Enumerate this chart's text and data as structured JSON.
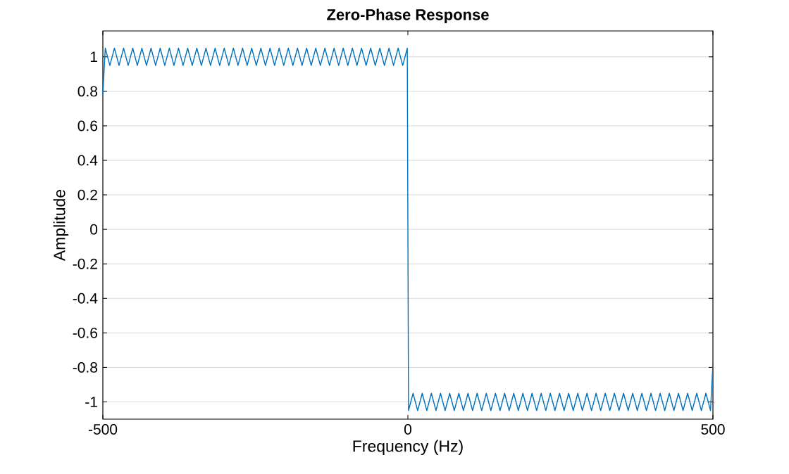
{
  "chart_data": {
    "type": "line",
    "title": "Zero-Phase Response",
    "xlabel": "Frequency (Hz)",
    "ylabel": "Amplitude",
    "color": "#0072bd",
    "grid": "y",
    "xlim": [
      -500,
      500
    ],
    "xticks": [
      -500,
      0,
      500
    ],
    "ylim": [
      -1.1,
      1.15
    ],
    "yticks": [
      -1,
      -0.8,
      -0.6,
      -0.4,
      -0.2,
      0,
      0.2,
      0.4,
      0.6,
      0.8,
      1
    ],
    "x": [
      -500,
      -496,
      -488.5,
      -481,
      -473.5,
      -466,
      -458.5,
      -451,
      -443.5,
      -436,
      -428.5,
      -421,
      -413.5,
      -406,
      -398.5,
      -391,
      -383.5,
      -376,
      -368.5,
      -361,
      -353.5,
      -346,
      -338.5,
      -331,
      -323.5,
      -316,
      -308.5,
      -301,
      -293.5,
      -286,
      -278.5,
      -271,
      -263.5,
      -256,
      -248.5,
      -241,
      -233.5,
      -226,
      -218.5,
      -211,
      -203.5,
      -196,
      -188.5,
      -181,
      -173.5,
      -166,
      -158.5,
      -151,
      -143.5,
      -136,
      -128.5,
      -121,
      -113.5,
      -106,
      -98.5,
      -91,
      -83.5,
      -76,
      -68.5,
      -61,
      -53.5,
      -46,
      -38.5,
      -31,
      -23.5,
      -16,
      -8.5,
      -1,
      0,
      1,
      8.5,
      16,
      23.5,
      31,
      38.5,
      46,
      53.5,
      61,
      68.5,
      76,
      83.5,
      91,
      98.5,
      106,
      113.5,
      121,
      128.5,
      136,
      143.5,
      151,
      158.5,
      166,
      173.5,
      181,
      188.5,
      196,
      203.5,
      211,
      218.5,
      226,
      233.5,
      241,
      248.5,
      256,
      263.5,
      271,
      278.5,
      286,
      293.5,
      301,
      308.5,
      316,
      323.5,
      331,
      338.5,
      346,
      353.5,
      361,
      368.5,
      376,
      383.5,
      391,
      398.5,
      406,
      413.5,
      421,
      428.5,
      436,
      443.5,
      451,
      458.5,
      466,
      473.5,
      481,
      488.5,
      496,
      500
    ],
    "values": [
      0.78,
      1.05,
      0.95,
      1.05,
      0.95,
      1.05,
      0.95,
      1.05,
      0.95,
      1.05,
      0.95,
      1.05,
      0.95,
      1.05,
      0.95,
      1.05,
      0.95,
      1.05,
      0.95,
      1.05,
      0.95,
      1.05,
      0.95,
      1.05,
      0.95,
      1.05,
      0.95,
      1.05,
      0.95,
      1.05,
      0.95,
      1.05,
      0.95,
      1.05,
      0.95,
      1.05,
      0.95,
      1.05,
      0.95,
      1.05,
      0.95,
      1.05,
      0.95,
      1.05,
      0.95,
      1.05,
      0.95,
      1.05,
      0.95,
      1.05,
      0.95,
      1.05,
      0.95,
      1.05,
      0.95,
      1.05,
      0.95,
      1.05,
      0.95,
      1.05,
      0.95,
      1.05,
      0.95,
      1.05,
      0.95,
      1.05,
      0.95,
      1.05,
      0,
      -1.05,
      -0.95,
      -1.05,
      -0.95,
      -1.05,
      -0.95,
      -1.05,
      -0.95,
      -1.05,
      -0.95,
      -1.05,
      -0.95,
      -1.05,
      -0.95,
      -1.05,
      -0.95,
      -1.05,
      -0.95,
      -1.05,
      -0.95,
      -1.05,
      -0.95,
      -1.05,
      -0.95,
      -1.05,
      -0.95,
      -1.05,
      -0.95,
      -1.05,
      -0.95,
      -1.05,
      -0.95,
      -1.05,
      -0.95,
      -1.05,
      -0.95,
      -1.05,
      -0.95,
      -1.05,
      -0.95,
      -1.05,
      -0.95,
      -1.05,
      -0.95,
      -1.05,
      -0.95,
      -1.05,
      -0.95,
      -1.05,
      -0.95,
      -1.05,
      -0.95,
      -1.05,
      -0.95,
      -1.05,
      -0.95,
      -1.05,
      -0.95,
      -1.05,
      -0.95,
      -1.05,
      -0.95,
      -1.05,
      -0.95,
      -1.05,
      -0.95,
      -1.05,
      -0.78
    ]
  }
}
